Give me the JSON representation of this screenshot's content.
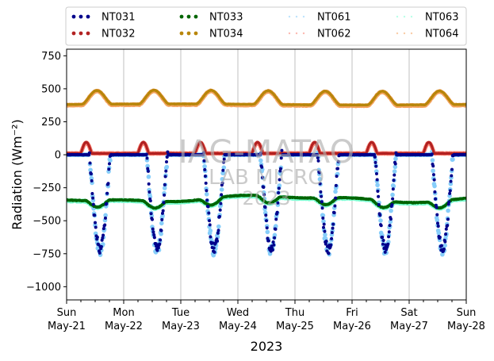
{
  "chart_data": {
    "type": "scatter",
    "title": "",
    "xlabel": "2023",
    "ylabel": "Radiation (Wm⁻²)",
    "ylim": [
      -1100,
      800
    ],
    "xlim": [
      "2023-05-21",
      "2023-05-28"
    ],
    "yticks": [
      750,
      500,
      250,
      0,
      -250,
      -500,
      -750,
      -1000
    ],
    "ytick_labels": [
      "750",
      "500",
      "250",
      "0",
      "−250",
      "−500",
      "−750",
      "−1000"
    ],
    "xticks": [
      {
        "day": "Sun",
        "date": "May-21"
      },
      {
        "day": "Mon",
        "date": "May-22"
      },
      {
        "day": "Tue",
        "date": "May-23"
      },
      {
        "day": "Wed",
        "date": "May-24"
      },
      {
        "day": "Thu",
        "date": "May-25"
      },
      {
        "day": "Fri",
        "date": "May-26"
      },
      {
        "day": "Sat",
        "date": "May-27"
      },
      {
        "day": "Sun",
        "date": "May-28"
      }
    ],
    "grid": "vertical",
    "legend_placement": "top, outside, 4 columns",
    "watermark": [
      "IAG-MATAO",
      "LAB MICRO",
      "2023"
    ],
    "series": [
      {
        "name": "NT031",
        "color": "#00008b",
        "shape": "daily dips to about -720 W/m2 near 14:00 each day, 0 at night"
      },
      {
        "name": "NT032",
        "color": "#b22222",
        "shape": "near 10 W/m2 at night, peaks about 95 W/m2 near 08:00"
      },
      {
        "name": "NT033",
        "color": "#006400",
        "shape": "about -330 to -400 W/m2, dips near 13:00"
      },
      {
        "name": "NT034",
        "color": "#b8860b",
        "shape": "about 380 W/m2 baseline, peaks about 485 W/m2 near 12:00"
      },
      {
        "name": "NT061",
        "color": "#87cefa",
        "shape": "daily dips to about -740 W/m2 near 14:00"
      },
      {
        "name": "NT062",
        "color": "#fa8072",
        "shape": "near 10 W/m2 at night, peaks about 90 W/m2 near 08:00"
      },
      {
        "name": "NT063",
        "color": "#7fffd4",
        "shape": "about -330 to -410 W/m2, dips near 13:00"
      },
      {
        "name": "NT064",
        "color": "#f4a460",
        "shape": "about 375 W/m2 baseline, peaks about 480 W/m2 near 12:00"
      }
    ]
  }
}
